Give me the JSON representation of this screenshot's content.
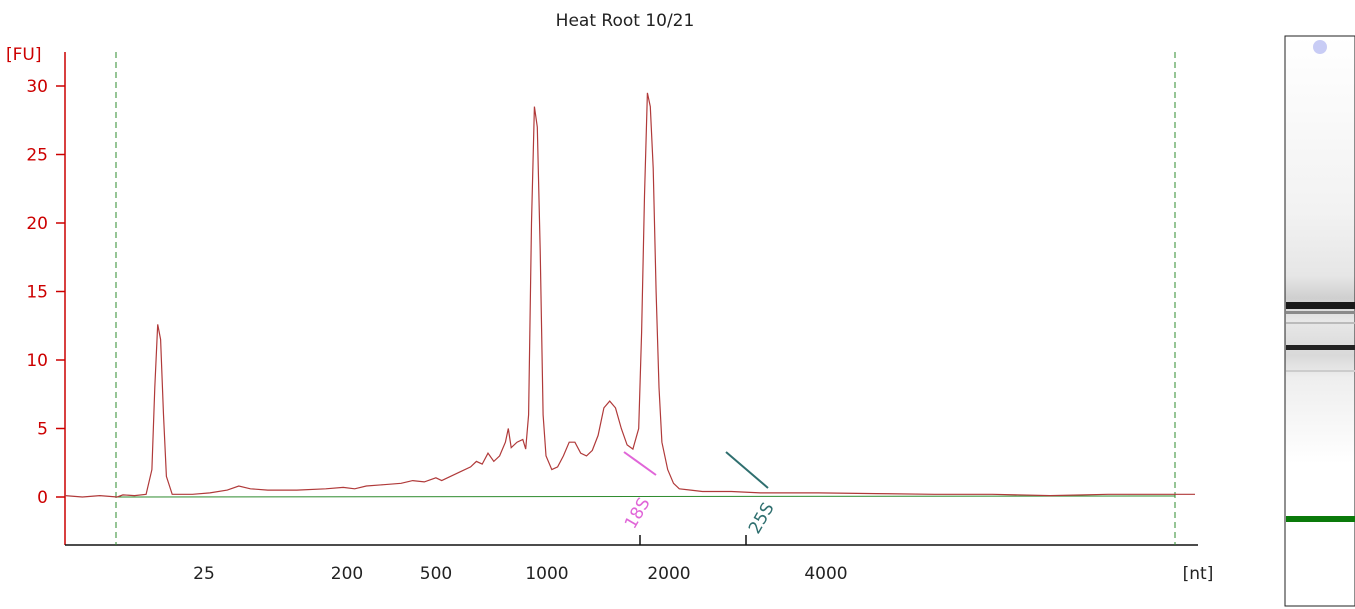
{
  "chart_data": {
    "type": "line",
    "title": "Heat Root 10/21",
    "y_unit": "[FU]",
    "x_unit": "[nt]",
    "ylim": [
      -3,
      32
    ],
    "y_ticks": [
      0,
      5,
      10,
      15,
      20,
      25,
      30
    ],
    "x_tick_labels": [
      "25",
      "200",
      "500",
      "1000",
      "2000",
      "4000"
    ],
    "colors": {
      "trace": "#b03a3a",
      "axis": "#cc0000",
      "baseline": "#2e8b2e",
      "marker_line": "#2e8b2e",
      "peak_18S": "#e066d8",
      "peak_25S": "#2f6f6f",
      "gel_marker": "#0a7a0a"
    },
    "series": [
      {
        "values": [
          [
            0,
            0.1
          ],
          [
            3,
            0.0
          ],
          [
            6,
            0.1
          ],
          [
            9,
            0.0
          ],
          [
            10,
            0.15
          ],
          [
            12,
            0.1
          ],
          [
            14,
            0.2
          ],
          [
            15,
            2.0
          ],
          [
            15.5,
            8.0
          ],
          [
            16,
            12.6
          ],
          [
            16.5,
            11.5
          ],
          [
            17,
            6.0
          ],
          [
            17.5,
            1.5
          ],
          [
            18.5,
            0.2
          ],
          [
            22,
            0.2
          ],
          [
            25,
            0.3
          ],
          [
            28,
            0.5
          ],
          [
            30,
            0.8
          ],
          [
            32,
            0.6
          ],
          [
            35,
            0.5
          ],
          [
            40,
            0.5
          ],
          [
            45,
            0.6
          ],
          [
            48,
            0.7
          ],
          [
            50,
            0.6
          ],
          [
            52,
            0.8
          ],
          [
            55,
            0.9
          ],
          [
            58,
            1.0
          ],
          [
            60,
            1.2
          ],
          [
            62,
            1.1
          ],
          [
            64,
            1.4
          ],
          [
            65,
            1.2
          ],
          [
            67,
            1.6
          ],
          [
            68,
            1.8
          ],
          [
            70,
            2.2
          ],
          [
            71,
            2.6
          ],
          [
            72,
            2.4
          ],
          [
            73,
            3.2
          ],
          [
            74,
            2.6
          ],
          [
            75,
            3.0
          ],
          [
            76,
            4.0
          ],
          [
            76.5,
            5.0
          ],
          [
            77,
            3.6
          ],
          [
            78,
            4.0
          ],
          [
            79,
            4.2
          ],
          [
            79.5,
            3.5
          ],
          [
            80,
            6.0
          ],
          [
            80.5,
            20.0
          ],
          [
            81,
            28.5
          ],
          [
            81.5,
            27.0
          ],
          [
            82,
            18.0
          ],
          [
            82.5,
            6.0
          ],
          [
            83,
            3.0
          ],
          [
            84,
            2.0
          ],
          [
            85,
            2.2
          ],
          [
            86,
            3.0
          ],
          [
            87,
            4.0
          ],
          [
            88,
            4.0
          ],
          [
            89,
            3.2
          ],
          [
            90,
            3.0
          ],
          [
            91,
            3.4
          ],
          [
            92,
            4.5
          ],
          [
            93,
            6.5
          ],
          [
            94,
            7.0
          ],
          [
            95,
            6.5
          ],
          [
            96,
            5.0
          ],
          [
            97,
            3.8
          ],
          [
            98,
            3.5
          ],
          [
            99,
            5.0
          ],
          [
            99.5,
            12.0
          ],
          [
            100,
            22.0
          ],
          [
            100.5,
            29.5
          ],
          [
            101,
            28.5
          ],
          [
            101.5,
            24.0
          ],
          [
            102,
            15.0
          ],
          [
            102.5,
            8.0
          ],
          [
            103,
            4.0
          ],
          [
            104,
            2.0
          ],
          [
            105,
            1.0
          ],
          [
            106,
            0.6
          ],
          [
            108,
            0.5
          ],
          [
            110,
            0.4
          ],
          [
            115,
            0.4
          ],
          [
            120,
            0.3
          ],
          [
            130,
            0.3
          ],
          [
            140,
            0.25
          ],
          [
            150,
            0.2
          ],
          [
            160,
            0.2
          ],
          [
            170,
            0.1
          ],
          [
            180,
            0.2
          ],
          [
            188,
            0.2
          ],
          [
            195,
            0.2
          ]
        ]
      }
    ],
    "peaks": [
      {
        "label": "18S"
      },
      {
        "label": "25S"
      }
    ]
  }
}
